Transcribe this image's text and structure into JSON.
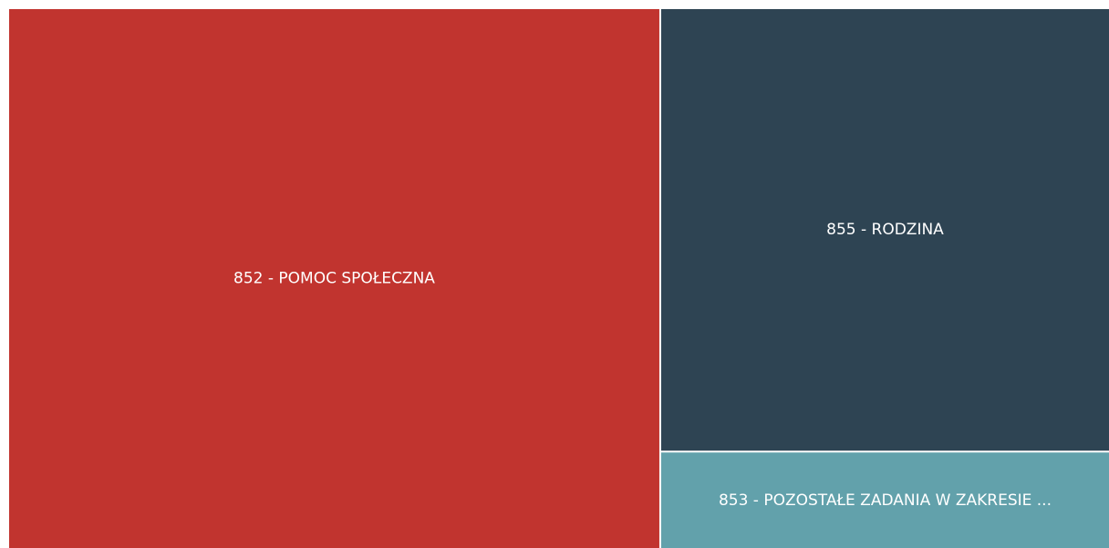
{
  "chart_data": {
    "type": "treemap",
    "categories": [
      "852 - POMOC SPOŁECZNA",
      "855 - RODZINA",
      "853 - POZOSTAŁE ZADANIA W ZAKRESIE ..."
    ],
    "values": [
      59.2,
      33.5,
      7.3
    ],
    "colors": [
      "#c1342f",
      "#2e4453",
      "#62a1ab"
    ]
  }
}
